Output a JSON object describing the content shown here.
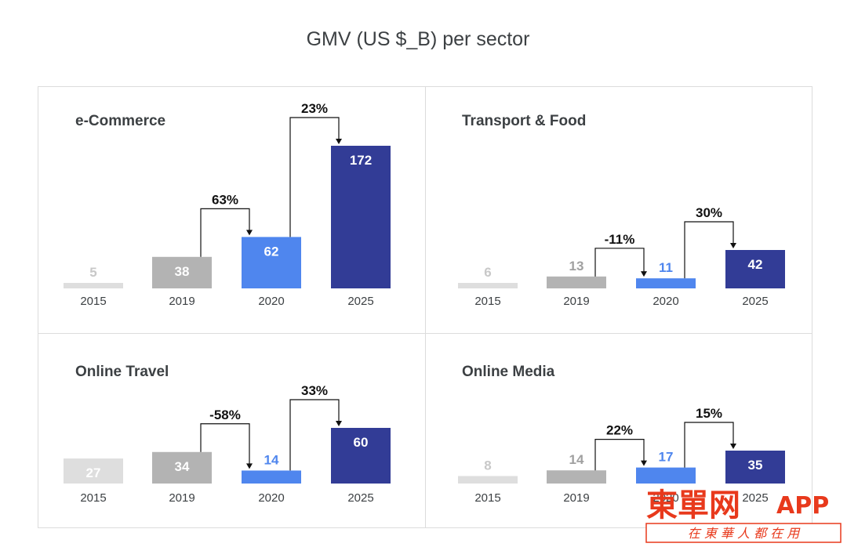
{
  "title": "GMV (US $_B) per sector",
  "colors": {
    "y2015": "#dedede",
    "y2019": "#b3b3b3",
    "y2020": "#4f86ee",
    "y2025": "#323c96",
    "label_light": "#ffffff",
    "label_faded_2015": "#c8c8c8",
    "label_faded_2019": "#a0a0a0",
    "label_2020_outside": "#4f86ee"
  },
  "chart_data": [
    {
      "type": "bar",
      "title": "e-Commerce",
      "categories": [
        "2015",
        "2019",
        "2020",
        "2025"
      ],
      "values": [
        5,
        38,
        62,
        172
      ],
      "growth": [
        {
          "from": "2019",
          "to": "2020",
          "label": "63%"
        },
        {
          "from": "2020",
          "to": "2025",
          "label": "23%"
        }
      ]
    },
    {
      "type": "bar",
      "title": "Transport & Food",
      "categories": [
        "2015",
        "2019",
        "2020",
        "2025"
      ],
      "values": [
        6,
        13,
        11,
        42
      ],
      "growth": [
        {
          "from": "2019",
          "to": "2020",
          "label": "-11%"
        },
        {
          "from": "2020",
          "to": "2025",
          "label": "30%"
        }
      ]
    },
    {
      "type": "bar",
      "title": "Online Travel",
      "categories": [
        "2015",
        "2019",
        "2020",
        "2025"
      ],
      "values": [
        27,
        34,
        14,
        60
      ],
      "growth": [
        {
          "from": "2019",
          "to": "2020",
          "label": "-58%"
        },
        {
          "from": "2020",
          "to": "2025",
          "label": "33%"
        }
      ]
    },
    {
      "type": "bar",
      "title": "Online Media",
      "categories": [
        "2015",
        "2019",
        "2020",
        "2025"
      ],
      "values": [
        8,
        14,
        17,
        35
      ],
      "growth": [
        {
          "from": "2019",
          "to": "2020",
          "label": "22%"
        },
        {
          "from": "2020",
          "to": "2025",
          "label": "15%"
        }
      ]
    }
  ],
  "watermark": {
    "brand": "東單网",
    "app": "APP",
    "slogan": "在 東 華 人 都 在 用",
    "color": "#e8391c"
  }
}
